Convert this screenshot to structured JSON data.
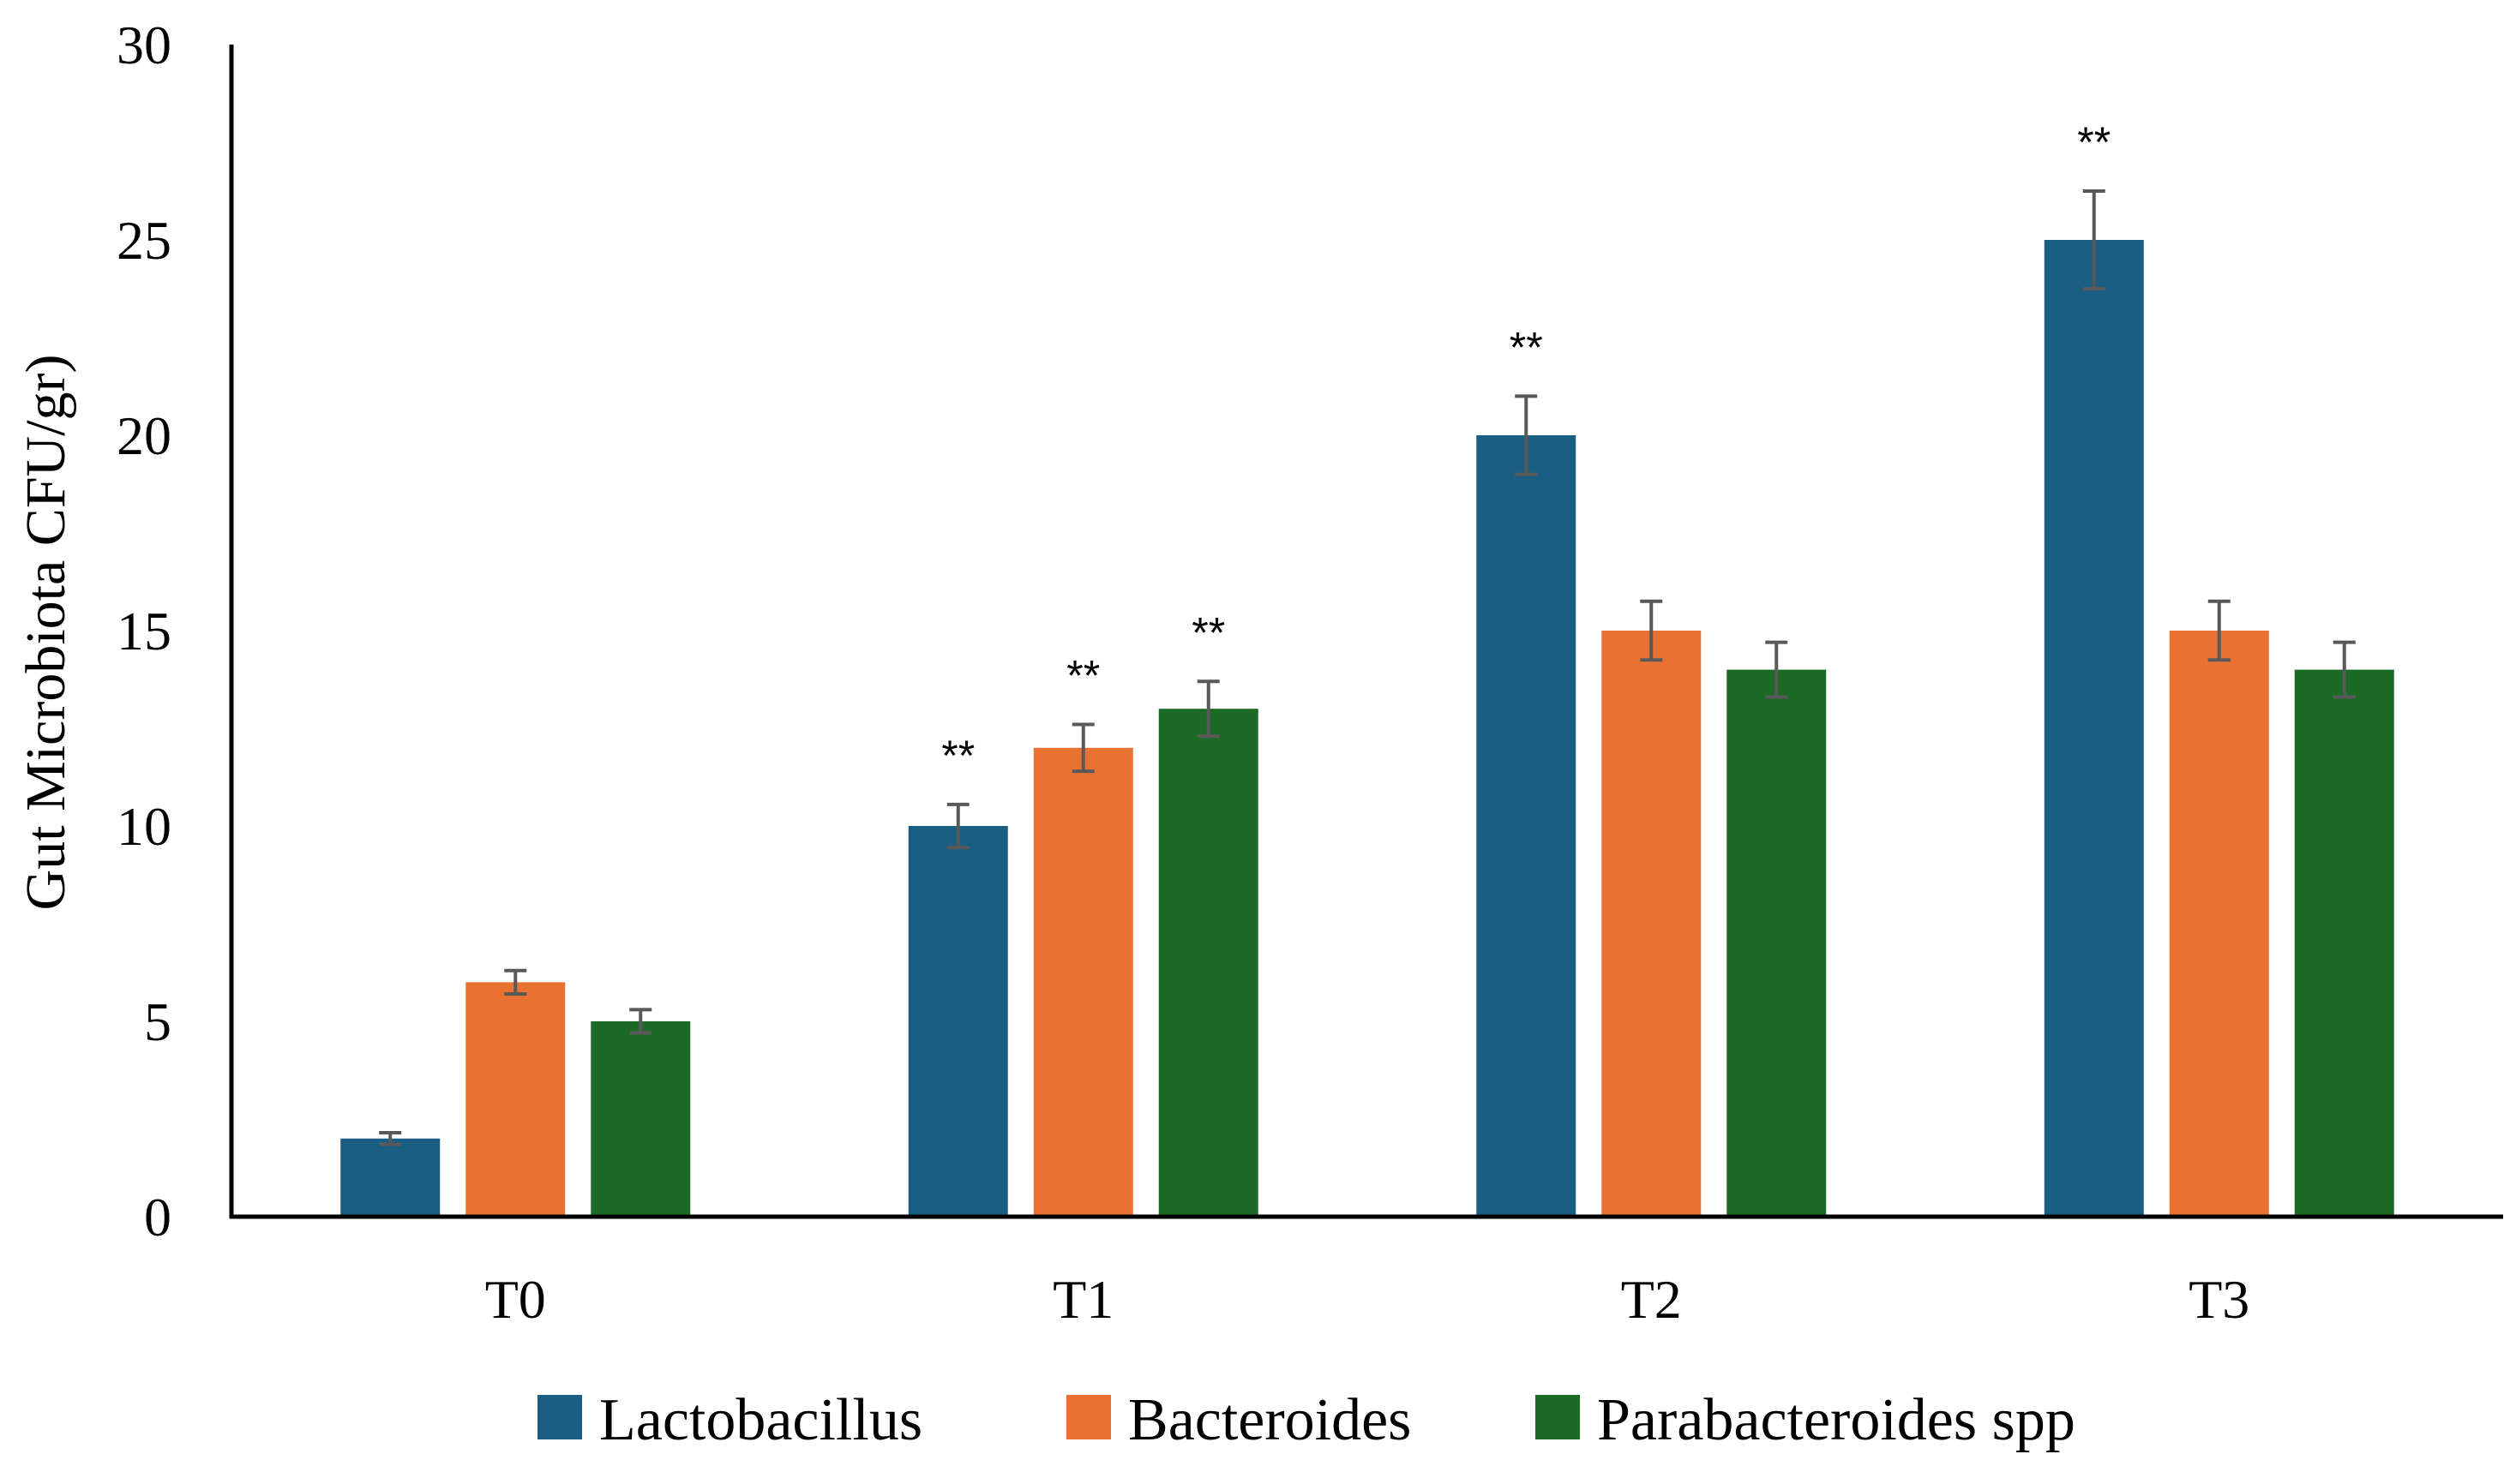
{
  "chart_data": {
    "type": "bar",
    "title": "",
    "xlabel": "",
    "ylabel": "Gut Microbiota CFU/gr)",
    "ylim": [
      0,
      30
    ],
    "yticks": [
      "0",
      "5",
      "10",
      "15",
      "20",
      "25",
      "30"
    ],
    "categories": [
      "T0",
      "T1",
      "T2",
      "T3"
    ],
    "grid": false,
    "legend_position": "bottom",
    "series": [
      {
        "name": "Lactobacillus",
        "color": "#1a5e84",
        "values": [
          2,
          10,
          20,
          25
        ],
        "errors": [
          0.15,
          0.55,
          1.0,
          1.25
        ],
        "significance": [
          "",
          "**",
          "**",
          "**"
        ]
      },
      {
        "name": "Bacteroides",
        "color": "#e97233",
        "values": [
          6,
          12,
          15,
          15
        ],
        "errors": [
          0.3,
          0.6,
          0.75,
          0.75
        ],
        "significance": [
          "",
          "**",
          "",
          ""
        ]
      },
      {
        "name": "Parabacteroides spp",
        "color": "#1b6b26",
        "values": [
          5,
          13,
          14,
          14
        ],
        "errors": [
          0.3,
          0.7,
          0.7,
          0.7
        ],
        "significance": [
          "",
          "**",
          "",
          ""
        ]
      }
    ],
    "error_bar_color": "#595959"
  }
}
